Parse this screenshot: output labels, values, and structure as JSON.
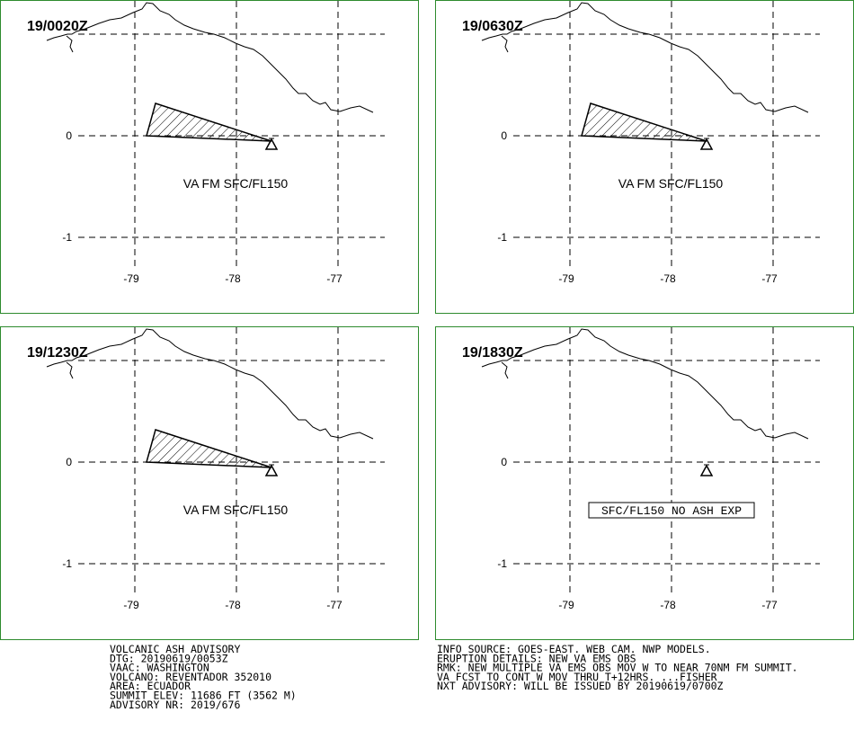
{
  "panels": [
    {
      "time": "19/0020Z",
      "lat_labels": [
        "0",
        "-1"
      ],
      "lon_labels": [
        "-79",
        "-78",
        "-77"
      ],
      "ash_area": true,
      "note": "VA FM SFC/FL150"
    },
    {
      "time": "19/0630Z",
      "lat_labels": [
        "0",
        "-1"
      ],
      "lon_labels": [
        "-79",
        "-78",
        "-77"
      ],
      "ash_area": true,
      "note": "VA FM SFC/FL150"
    },
    {
      "time": "19/1230Z",
      "lat_labels": [
        "0",
        "-1"
      ],
      "lon_labels": [
        "-79",
        "-78",
        "-77"
      ],
      "ash_area": true,
      "note": "VA FM SFC/FL150"
    },
    {
      "time": "19/1830Z",
      "lat_labels": [
        "0",
        "-1"
      ],
      "lon_labels": [
        "-79",
        "-78",
        "-77"
      ],
      "ash_area": false,
      "note": "SFC/FL150 NO ASH EXP"
    }
  ],
  "advisory_left": [
    "VOLCANIC ASH ADVISORY",
    "DTG: 20190619/0053Z",
    "VAAC: WASHINGTON",
    "VOLCANO: REVENTADOR 352010",
    "AREA: ECUADOR",
    "SUMMIT ELEV: 11686 FT (3562 M)",
    "ADVISORY NR: 2019/676"
  ],
  "advisory_right": [
    "INFO SOURCE: GOES-EAST. WEB CAM. NWP MODELS.",
    "ERUPTION DETAILS: NEW VA EMS OBS",
    "RMK: NEW MULTIPLE VA EMS OBS MOV W TO NEAR 70NM FM SUMMIT.",
    "VA FCST TO CONT W MOV THRU T+12HRS. ...FISHER",
    "NXT ADVISORY: WILL BE ISSUED BY 20190619/0700Z"
  ]
}
